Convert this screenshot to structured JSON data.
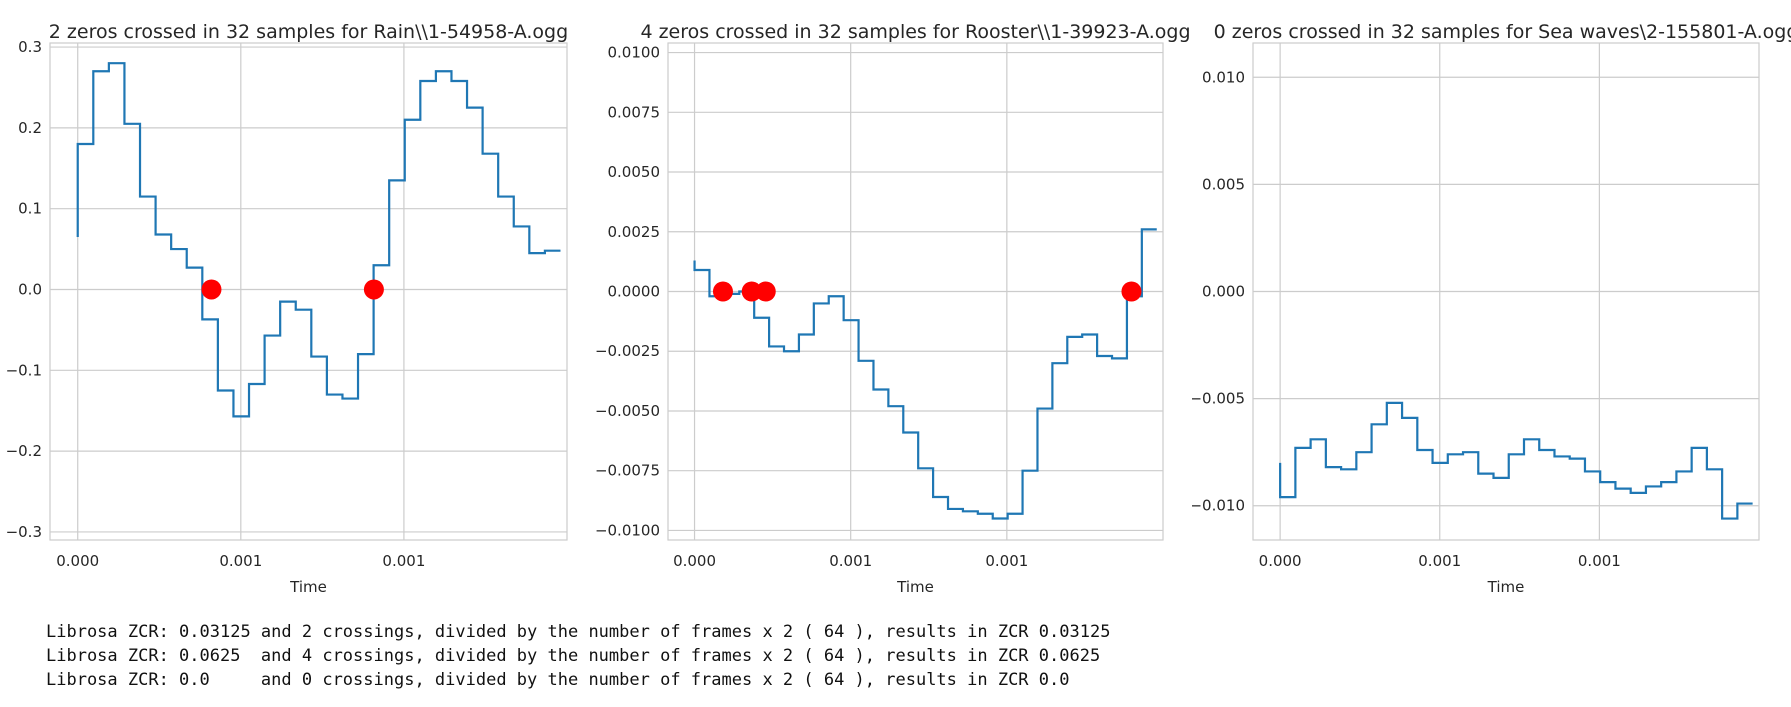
{
  "chart_data": [
    {
      "type": "line",
      "step": true,
      "title": "2 zeros crossed in 32 samples for Rain\\\\1-54958-A.ogg",
      "xlabel": "Time",
      "ylabel": "",
      "grid": true,
      "xlim": [
        -8.5e-05,
        0.0015
      ],
      "ylim": [
        -0.31,
        0.305
      ],
      "x_ticks": [
        0.0,
        0.0005,
        0.001
      ],
      "x_tick_labels": [
        "0.000",
        "0.001",
        "0.001"
      ],
      "y_ticks": [
        -0.3,
        -0.2,
        -0.1,
        0.0,
        0.1,
        0.2,
        0.3
      ],
      "y_tick_labels": [
        "−0.3",
        "−0.2",
        "−0.1",
        "0.0",
        "0.1",
        "0.2",
        "0.3"
      ],
      "series": [
        {
          "values": [
            0.065,
            0.18,
            0.27,
            0.28,
            0.205,
            0.115,
            0.068,
            0.05,
            0.027,
            -0.037,
            -0.125,
            -0.157,
            -0.117,
            -0.057,
            -0.015,
            -0.025,
            -0.083,
            -0.13,
            -0.135,
            -0.08,
            0.03,
            0.135,
            0.21,
            0.258,
            0.27,
            0.258,
            0.225,
            0.168,
            0.115,
            0.078,
            0.045,
            0.048
          ]
        }
      ],
      "zero_crossing_x": [
        0.00041,
        0.000908
      ]
    },
    {
      "type": "line",
      "step": true,
      "title": "4 zeros crossed in 32 samples for Rooster\\\\1-39923-A.ogg",
      "xlabel": "Time",
      "ylabel": "",
      "grid": true,
      "xlim": [
        -8.5e-05,
        0.0015
      ],
      "ylim": [
        -0.0104,
        0.0104
      ],
      "x_ticks": [
        0.0,
        0.0005,
        0.001
      ],
      "x_tick_labels": [
        "0.000",
        "0.001",
        "0.001"
      ],
      "y_ticks": [
        -0.01,
        -0.0075,
        -0.005,
        -0.0025,
        0.0,
        0.0025,
        0.005,
        0.0075,
        0.01
      ],
      "y_tick_labels": [
        "−0.0100",
        "−0.0075",
        "−0.0050",
        "−0.0025",
        "0.0000",
        "0.0025",
        "0.0050",
        "0.0075",
        "0.0100"
      ],
      "series": [
        {
          "values": [
            0.0013,
            0.0009,
            -0.0002,
            -0.0001,
            0.0,
            -0.0011,
            -0.0023,
            -0.0025,
            -0.0018,
            -0.0005,
            -0.0002,
            -0.0012,
            -0.0029,
            -0.0041,
            -0.0048,
            -0.0059,
            -0.0074,
            -0.0086,
            -0.0091,
            -0.0092,
            -0.0093,
            -0.0095,
            -0.0093,
            -0.0075,
            -0.0049,
            -0.003,
            -0.0019,
            -0.0018,
            -0.0027,
            -0.0028,
            -0.0002,
            0.0026
          ]
        }
      ],
      "zero_crossing_x": [
        9.1e-05,
        0.000183,
        0.000228,
        0.001399
      ]
    },
    {
      "type": "line",
      "step": true,
      "title": "0 zeros crossed in 32 samples for Sea waves\\2-155801-A.ogg",
      "xlabel": "Time",
      "ylabel": "",
      "grid": true,
      "xlim": [
        -8.5e-05,
        0.0015
      ],
      "ylim": [
        -0.0116,
        0.0116
      ],
      "x_ticks": [
        0.0,
        0.0005,
        0.001
      ],
      "x_tick_labels": [
        "0.000",
        "0.001",
        "0.001"
      ],
      "y_ticks": [
        -0.01,
        -0.005,
        0.0,
        0.005,
        0.01
      ],
      "y_tick_labels": [
        "−0.010",
        "−0.005",
        "0.000",
        "0.005",
        "0.010"
      ],
      "series": [
        {
          "values": [
            -0.008,
            -0.0096,
            -0.0073,
            -0.0069,
            -0.0082,
            -0.0083,
            -0.0075,
            -0.0062,
            -0.0052,
            -0.0059,
            -0.0074,
            -0.008,
            -0.0076,
            -0.0075,
            -0.0085,
            -0.0087,
            -0.0076,
            -0.0069,
            -0.0074,
            -0.0077,
            -0.0078,
            -0.0084,
            -0.0089,
            -0.0092,
            -0.0094,
            -0.0091,
            -0.0089,
            -0.0084,
            -0.0073,
            -0.0083,
            -0.0106,
            -0.0099
          ]
        }
      ],
      "zero_crossing_x": []
    }
  ],
  "log": [
    "Librosa ZCR: 0.03125 and 2 crossings, divided by the number of frames x 2 ( 64 ), results in ZCR 0.03125",
    "Librosa ZCR: 0.0625  and 4 crossings, divided by the number of frames x 2 ( 64 ), results in ZCR 0.0625",
    "Librosa ZCR: 0.0     and 0 crossings, divided by the number of frames x 2 ( 64 ), results in ZCR 0.0"
  ]
}
